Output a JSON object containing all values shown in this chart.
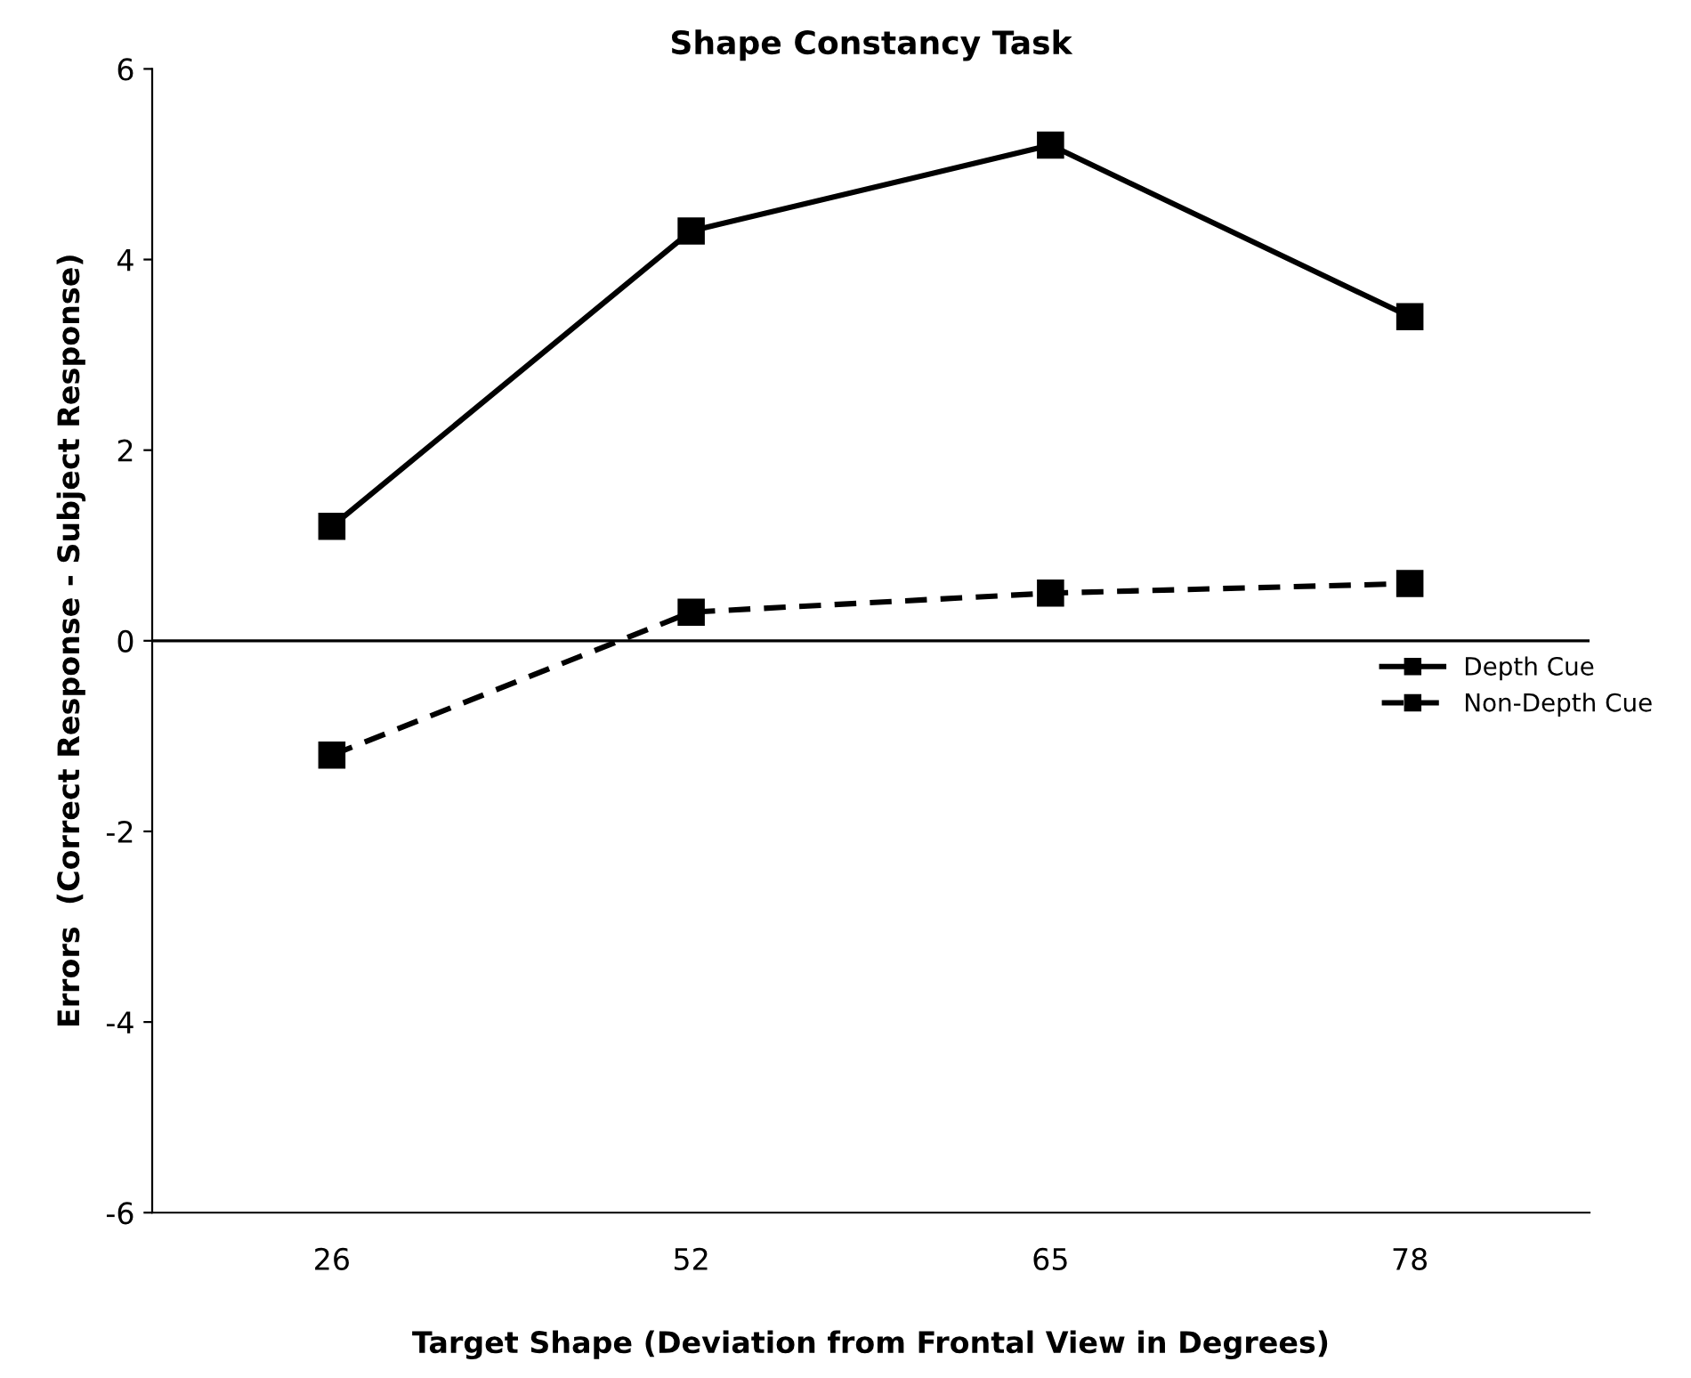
{
  "chart_data": {
    "type": "line",
    "title": "Shape Constancy Task",
    "xlabel": "Target Shape (Deviation from Frontal View in Degrees)",
    "ylabel": "Errors  (Correct Response - Subject Response)",
    "categories": [
      "26",
      "52",
      "65",
      "78"
    ],
    "series": [
      {
        "name": "Depth Cue",
        "color": "#000000",
        "line_style": "solid",
        "values": [
          1.2,
          4.3,
          5.2,
          3.4
        ]
      },
      {
        "name": "Non-Depth Cue",
        "color": "#000000",
        "line_style": "dashed",
        "values": [
          -1.2,
          0.3,
          0.5,
          0.6
        ]
      }
    ],
    "ylim": [
      -6,
      6
    ],
    "yticks": [
      -6,
      -4,
      -2,
      0,
      2,
      4,
      6
    ],
    "ref_lines": [
      {
        "axis": "y",
        "value": 0,
        "color": "#000000"
      }
    ],
    "marker": "square",
    "grid": false,
    "legend": "right"
  }
}
